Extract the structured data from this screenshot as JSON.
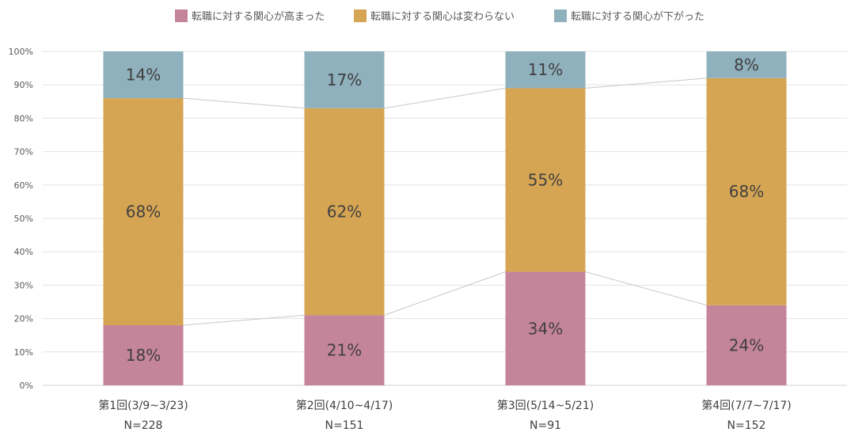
{
  "chart_data": {
    "type": "bar",
    "stacked": true,
    "percent_stacked": true,
    "categories": [
      {
        "label": "第1回(3/9~3/23)",
        "n": "N=228"
      },
      {
        "label": "第2回(4/10~4/17)",
        "n": "N=151"
      },
      {
        "label": "第3回(5/14~5/21)",
        "n": "N=91"
      },
      {
        "label": "第4回(7/7~7/17)",
        "n": "N=152"
      }
    ],
    "series": [
      {
        "name": "転職に対する関心が高まった",
        "color": "#c4849a",
        "values": [
          18,
          21,
          34,
          24
        ],
        "labels": [
          "18%",
          "21%",
          "34%",
          "24%"
        ]
      },
      {
        "name": "転職に対する関心は変わらない",
        "color": "#d6a553",
        "values": [
          68,
          62,
          55,
          68
        ],
        "labels": [
          "68%",
          "62%",
          "55%",
          "68%"
        ]
      },
      {
        "name": "転職に対する関心が下がった",
        "color": "#8fb0bd",
        "values": [
          14,
          17,
          11,
          8
        ],
        "labels": [
          "14%",
          "17%",
          "11%",
          "8%"
        ]
      }
    ],
    "ylim": [
      0,
      100
    ],
    "yticks": [
      "0%",
      "10%",
      "20%",
      "30%",
      "40%",
      "50%",
      "60%",
      "70%",
      "80%",
      "90%",
      "100%"
    ],
    "grid": true,
    "series_lines": true,
    "legend_position": "top"
  }
}
